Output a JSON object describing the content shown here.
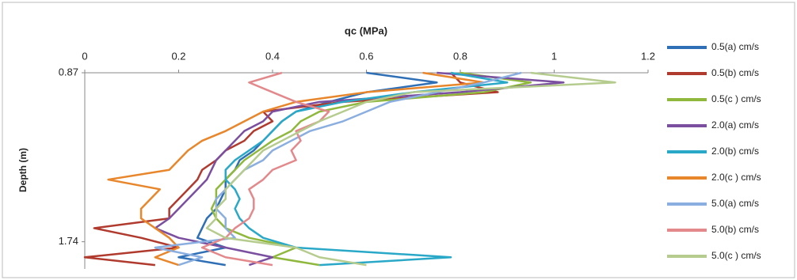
{
  "chart_data": {
    "type": "line",
    "title": "qc (MPa)",
    "y_label": "Depth (m)",
    "xlim": [
      0,
      1.2
    ],
    "xticks": [
      0,
      0.2,
      0.4,
      0.6,
      0.8,
      1,
      1.2
    ],
    "ylim": [
      0.87,
      1.88
    ],
    "yticks": [
      0.87,
      1.74
    ],
    "y_inverted": true,
    "legend": "right",
    "depth": [
      0.87,
      0.92,
      0.97,
      1.02,
      1.07,
      1.12,
      1.17,
      1.22,
      1.27,
      1.32,
      1.37,
      1.42,
      1.47,
      1.52,
      1.57,
      1.62,
      1.67,
      1.72,
      1.77,
      1.82,
      1.86
    ],
    "series": [
      {
        "name": "0.5(a) cm/s",
        "color": "#2e6fb5",
        "values": [
          0.6,
          0.75,
          0.6,
          0.52,
          0.45,
          0.42,
          0.4,
          0.38,
          0.36,
          0.33,
          0.32,
          0.3,
          0.3,
          0.29,
          0.28,
          0.26,
          0.25,
          0.24,
          0.3,
          0.2,
          0.3
        ]
      },
      {
        "name": "0.5(b) cm/s",
        "color": "#b03a2e",
        "values": [
          0.78,
          0.8,
          0.88,
          0.55,
          0.38,
          0.4,
          0.36,
          0.34,
          0.3,
          0.28,
          0.25,
          0.24,
          0.22,
          0.2,
          0.18,
          0.18,
          0.02,
          0.12,
          0.2,
          0.0,
          0.15
        ]
      },
      {
        "name": "0.5(c ) cm/s",
        "color": "#8fb83d",
        "values": [
          0.8,
          0.95,
          0.85,
          0.6,
          0.5,
          0.46,
          0.44,
          0.4,
          0.37,
          0.34,
          0.32,
          0.3,
          0.28,
          0.28,
          0.27,
          0.28,
          0.3,
          0.35,
          0.45,
          0.4,
          0.5
        ]
      },
      {
        "name": "2.0(a) cm/s",
        "color": "#7b4fa0",
        "values": [
          0.75,
          1.02,
          0.8,
          0.5,
          0.4,
          0.38,
          0.34,
          0.32,
          0.3,
          0.28,
          0.27,
          0.26,
          0.24,
          0.22,
          0.2,
          0.18,
          0.15,
          0.2,
          0.3,
          0.4,
          0.35
        ]
      },
      {
        "name": "2.0(b) cm/s",
        "color": "#2aa8c8",
        "values": [
          0.78,
          0.9,
          0.7,
          0.55,
          0.45,
          0.42,
          0.4,
          0.38,
          0.35,
          0.32,
          0.3,
          0.3,
          0.32,
          0.33,
          0.32,
          0.33,
          0.35,
          0.38,
          0.45,
          0.78,
          0.5
        ]
      },
      {
        "name": "2.0(c ) cm/s",
        "color": "#e8862b",
        "values": [
          0.72,
          0.85,
          0.6,
          0.45,
          0.38,
          0.34,
          0.3,
          0.25,
          0.22,
          0.2,
          0.18,
          0.05,
          0.16,
          0.14,
          0.12,
          0.12,
          0.15,
          0.18,
          0.2,
          0.15,
          0.2
        ]
      },
      {
        "name": "5.0(a) cm/s",
        "color": "#8aaee0",
        "values": [
          0.93,
          0.85,
          0.75,
          0.65,
          0.6,
          0.55,
          0.48,
          0.44,
          0.4,
          0.38,
          0.34,
          0.32,
          0.3,
          0.28,
          0.28,
          0.3,
          0.3,
          0.32,
          0.15,
          0.25,
          0.2
        ]
      },
      {
        "name": "5.0(b) cm/s",
        "color": "#e3898c",
        "values": [
          0.42,
          0.35,
          0.4,
          0.45,
          0.52,
          0.5,
          0.45,
          0.46,
          0.44,
          0.45,
          0.4,
          0.38,
          0.35,
          0.36,
          0.36,
          0.35,
          0.32,
          0.3,
          0.25,
          0.3,
          0.4
        ]
      },
      {
        "name": "5.0(c ) cm/s",
        "color": "#b5cc8e",
        "values": [
          0.95,
          1.13,
          0.7,
          0.6,
          0.55,
          0.5,
          0.46,
          0.42,
          0.38,
          0.36,
          0.34,
          0.32,
          0.3,
          0.3,
          0.28,
          0.28,
          0.26,
          0.3,
          0.45,
          0.5,
          0.6
        ]
      }
    ]
  }
}
